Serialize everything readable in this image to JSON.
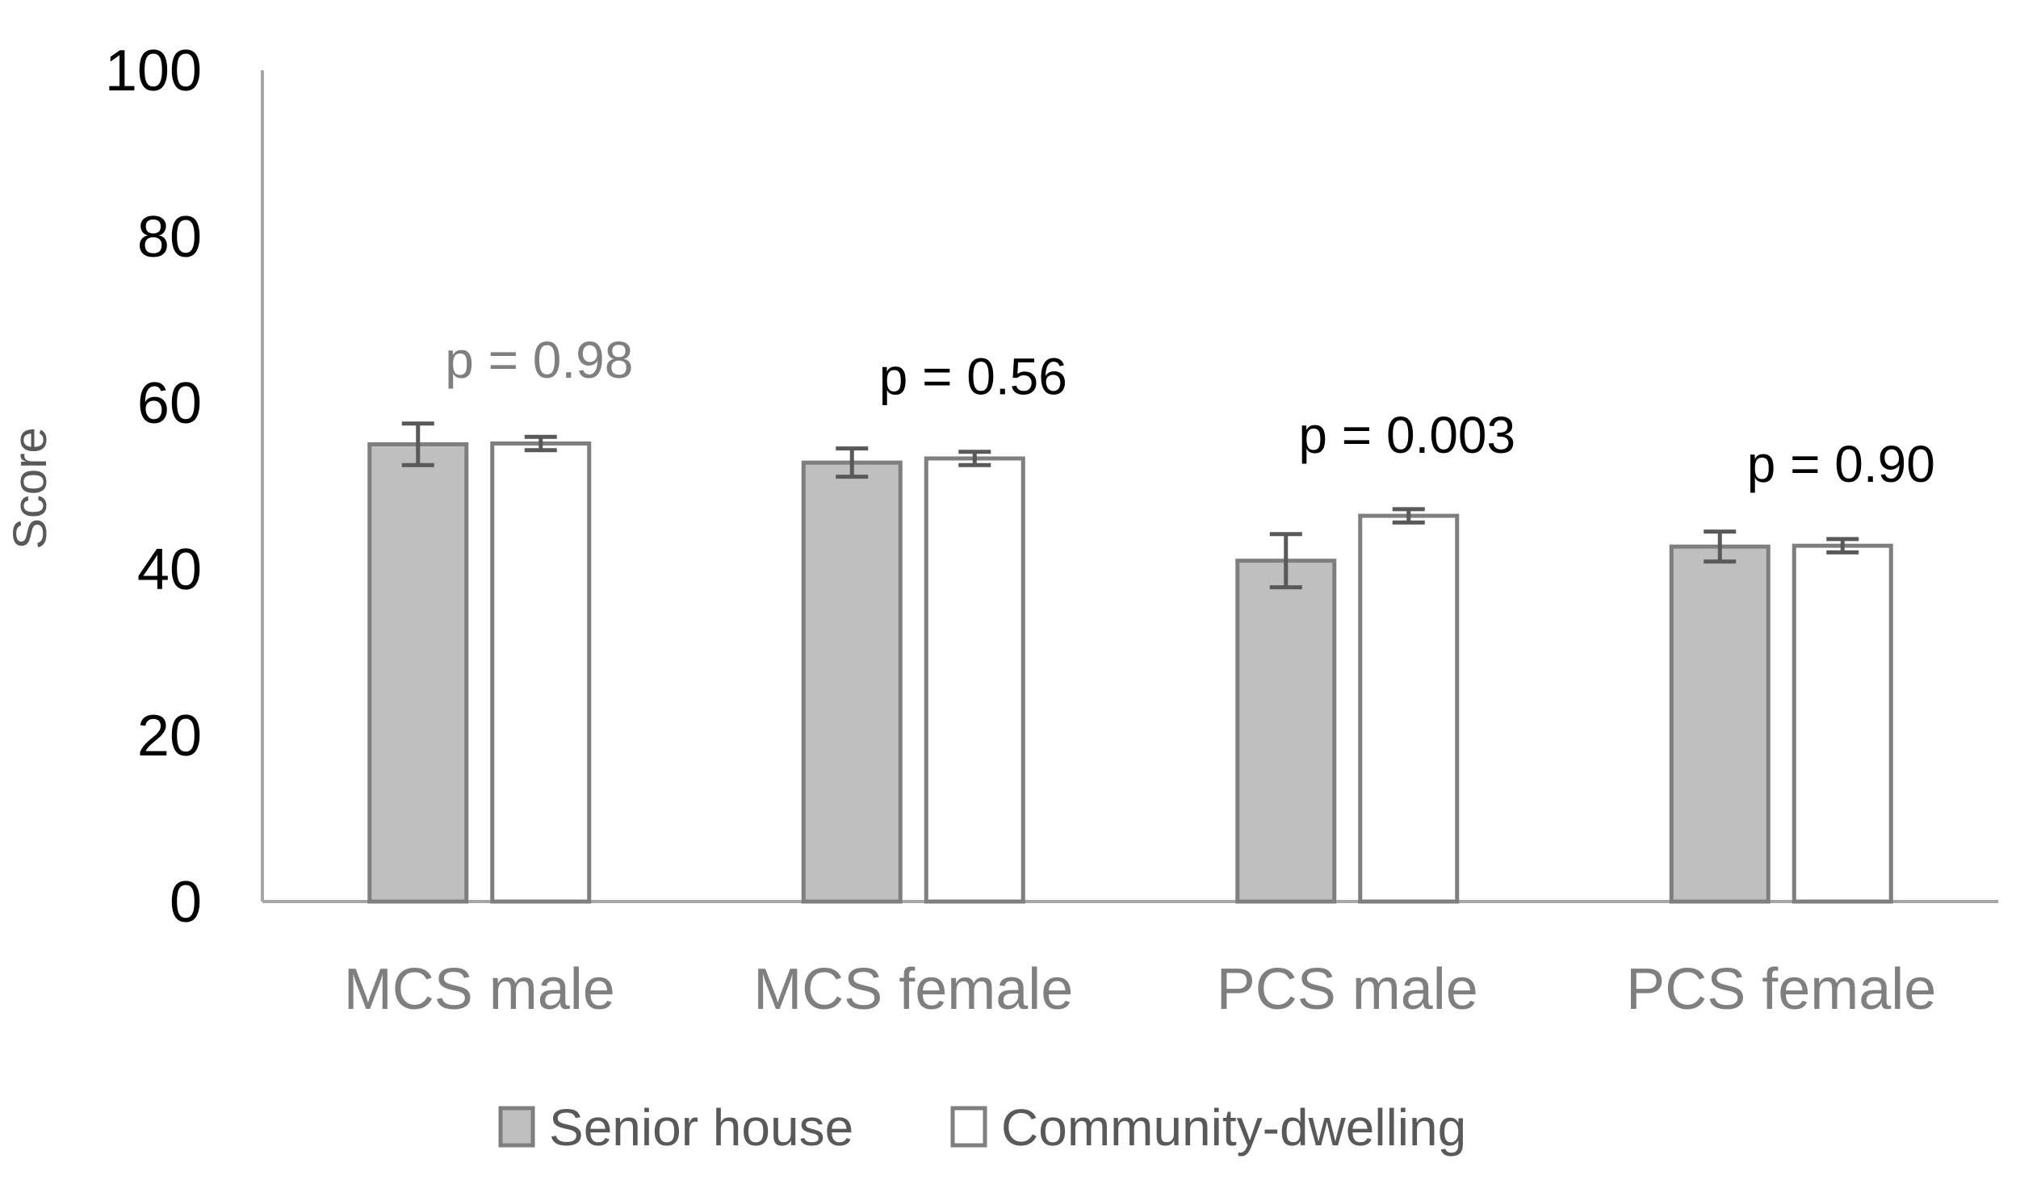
{
  "chart_data": {
    "type": "bar",
    "title": "",
    "xlabel": "",
    "ylabel": "Score",
    "ylim": [
      0,
      100
    ],
    "yticks": [
      0,
      20,
      40,
      60,
      80,
      100
    ],
    "categories": [
      "MCS male",
      "MCS female",
      "PCS male",
      "PCS female"
    ],
    "series": [
      {
        "name": "Senior house",
        "fill": "#bfbfbf",
        "stroke": "#7f7f7f",
        "values": [
          55.0,
          52.8,
          41.0,
          42.7
        ],
        "error": [
          2.5,
          1.7,
          3.2,
          1.8
        ]
      },
      {
        "name": "Community-dwelling",
        "fill": "#ffffff",
        "stroke": "#7f7f7f",
        "values": [
          55.1,
          53.3,
          46.4,
          42.8
        ],
        "error": [
          0.8,
          0.8,
          0.8,
          0.8
        ]
      }
    ],
    "annotations": [
      {
        "text": "p = 0.98",
        "category": "MCS male",
        "value": 63,
        "color": "#7f7f7f"
      },
      {
        "text": "p = 0.56",
        "category": "MCS female",
        "value": 61,
        "color": "#000000"
      },
      {
        "text": "p = 0.003",
        "category": "PCS male",
        "value": 54,
        "color": "#000000"
      },
      {
        "text": "p = 0.90",
        "category": "PCS female",
        "value": 50.5,
        "color": "#000000"
      }
    ],
    "legend_position": "bottom",
    "grid": false,
    "colors": {
      "axis": "#a6a6a6",
      "error_bar": "#595959"
    }
  }
}
